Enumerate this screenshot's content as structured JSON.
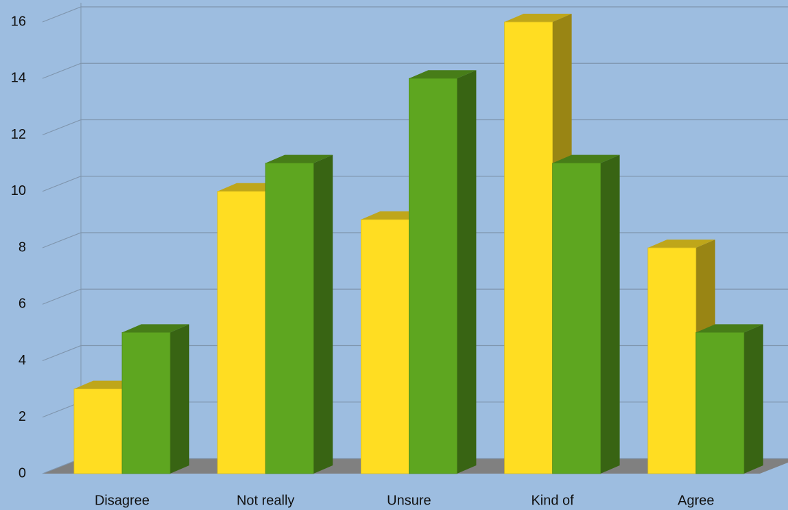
{
  "chart_data": {
    "type": "bar3d",
    "categories": [
      "Disagree",
      "Not really",
      "Unsure",
      "Kind of",
      "Agree"
    ],
    "series": [
      {
        "color": "#ffdd22",
        "values": [
          3,
          10,
          9,
          16,
          8
        ]
      },
      {
        "color": "#5ea620",
        "values": [
          5,
          11,
          14,
          11,
          5
        ]
      }
    ],
    "ylim": [
      0,
      16
    ],
    "yticks": [
      0,
      2,
      4,
      6,
      8,
      10,
      12,
      14,
      16
    ],
    "grid": true
  }
}
